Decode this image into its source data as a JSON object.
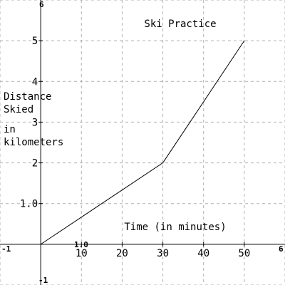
{
  "chart_data": {
    "type": "line",
    "title": "Ski Practice",
    "xlabel": "Time (in minutes)",
    "ylabel_lines": [
      "Distance",
      "Skied",
      "in",
      "kilometers"
    ],
    "xlim": [
      -10,
      60
    ],
    "ylim": [
      -1,
      6
    ],
    "x_ticks": [
      10,
      20,
      30,
      40,
      50
    ],
    "y_ticks": [
      1,
      2,
      3,
      4,
      5
    ],
    "x_tick_labels": [
      "10",
      "20",
      "30",
      "40",
      "50"
    ],
    "y_tick_labels": [
      "1.0",
      "2",
      "3",
      "4",
      "5"
    ],
    "edge_labels": {
      "x_min": "-1",
      "x_max": "6",
      "y_min": "-1",
      "y_max": "6",
      "x_step": "1.0"
    },
    "grid": true,
    "series": [
      {
        "x": [
          0,
          30,
          50
        ],
        "y": [
          0,
          2,
          5
        ]
      }
    ]
  }
}
